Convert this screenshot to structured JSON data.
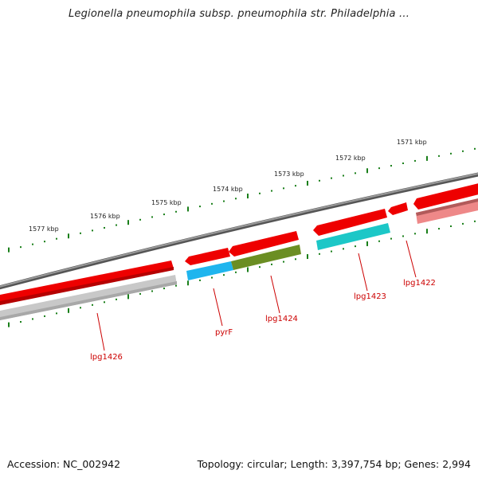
{
  "title": "Legionella pneumophila subsp. pneumophila str. Philadelphia ...",
  "accession": "Accession: NC_002942",
  "summary": "Topology: circular; Length: 3,397,754 bp; Genes: 2,994",
  "ruler": {
    "ticks": [
      "1577 kbp",
      "1576 kbp",
      "1575 kbp",
      "1574 kbp",
      "1573 kbp",
      "1572 kbp",
      "1571 kbp"
    ]
  },
  "genes": [
    {
      "label": "lpg1426",
      "color": "#e00000"
    },
    {
      "label": "pyrF",
      "color": "#e00000"
    },
    {
      "label": "lpg1424",
      "color": "#e00000"
    },
    {
      "label": "lpg1423",
      "color": "#e00000"
    },
    {
      "label": "lpg1422",
      "color": "#e00000"
    }
  ],
  "colors": {
    "backbone": "#777777",
    "forward_feature": "#ee0000",
    "reverse_grey": "#bdbdbd",
    "reverse_blue": "#1fb5ee",
    "reverse_olive": "#6b8e23",
    "reverse_teal": "#1cc7c7",
    "reverse_pink": "#ee8888",
    "tick": "#1a7f1a",
    "label": "#cc0000"
  },
  "icons": [
    "gene-arrow-icon"
  ]
}
